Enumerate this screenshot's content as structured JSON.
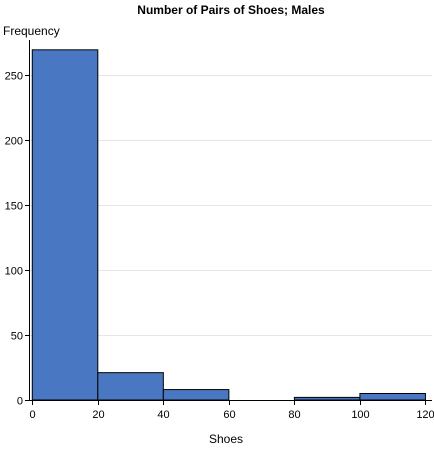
{
  "chart_data": {
    "type": "bar",
    "title": "Number of Pairs of Shoes; Males",
    "xlabel": "Shoes",
    "ylabel": "Frequency",
    "bins": [
      {
        "x0": 0,
        "x1": 20,
        "value": 269
      },
      {
        "x0": 20,
        "x1": 40,
        "value": 21
      },
      {
        "x0": 40,
        "x1": 60,
        "value": 8
      },
      {
        "x0": 60,
        "x1": 80,
        "value": 0
      },
      {
        "x0": 80,
        "x1": 100,
        "value": 2
      },
      {
        "x0": 100,
        "x1": 120,
        "value": 5
      }
    ],
    "xlim": [
      -1,
      122
    ],
    "ylim": [
      0,
      275
    ],
    "xticks": [
      "0",
      "20",
      "40",
      "60",
      "80",
      "100",
      "120"
    ],
    "yticks": [
      "0",
      "50",
      "100",
      "150",
      "200",
      "250"
    ],
    "grid": true,
    "colors": {
      "bar_fill": "#4a77c2",
      "bar_stroke": "#000000",
      "grid": "#e6e6e6",
      "axis": "#000000"
    }
  }
}
